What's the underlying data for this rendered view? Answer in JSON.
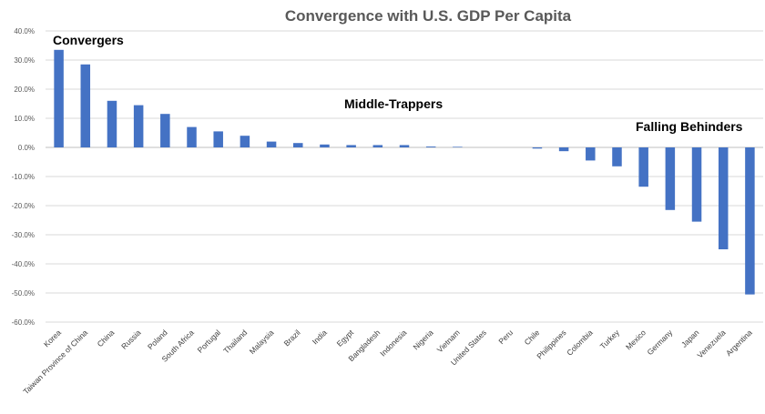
{
  "chart_data": {
    "type": "bar",
    "title": "Convergence with U.S. GDP Per Capita",
    "categories": [
      "Korea",
      "Taiwan Province of China",
      "China",
      "Russia",
      "Poland",
      "South Africa",
      "Portugal",
      "Thailand",
      "Malaysia",
      "Brazil",
      "India",
      "Egypt",
      "Bangladesh",
      "Indonesia",
      "Nigeria",
      "Vietnam",
      "United States",
      "Peru",
      "Chile",
      "Philippines",
      "Colombia",
      "Turkey",
      "Mexico",
      "Germany",
      "Japan",
      "Venezuela",
      "Argentina"
    ],
    "values": [
      33.5,
      28.5,
      16.0,
      14.5,
      11.5,
      7.0,
      5.5,
      4.0,
      2.0,
      1.5,
      1.0,
      0.8,
      0.8,
      0.8,
      0.3,
      0.2,
      0.0,
      0.0,
      -0.4,
      -1.3,
      -4.5,
      -6.5,
      -13.5,
      -21.5,
      -25.5,
      -35.0,
      -50.5
    ],
    "ylim": [
      -60,
      40
    ],
    "yticks": [
      -60,
      -50,
      -40,
      -30,
      -20,
      -10,
      0,
      10,
      20,
      30,
      40
    ],
    "ytick_labels": [
      "-60.0%",
      "-50.0%",
      "-40.0%",
      "-30.0%",
      "-20.0%",
      "-10.0%",
      "0.0%",
      "10.0%",
      "20.0%",
      "30.0%",
      "40.0%"
    ],
    "grid": true,
    "bar_color": "#4472c4",
    "annotations": [
      {
        "text": "Convergers",
        "category": "Korea"
      },
      {
        "text": "Middle-Trappers",
        "category": "Bangladesh"
      },
      {
        "text": "Falling Behinders",
        "category": "Germany"
      }
    ]
  }
}
